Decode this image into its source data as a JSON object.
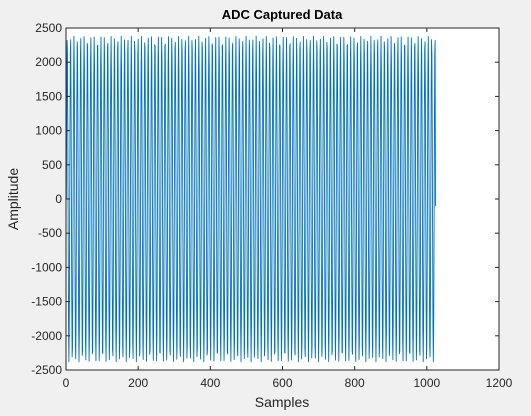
{
  "colors": {
    "figure_background": "#f0f0f0",
    "axes_background": "#ffffff",
    "axes_line": "#262626",
    "series": "#0072bd"
  },
  "chart_data": {
    "type": "line",
    "title": "ADC Captured Data",
    "xlabel": "Samples",
    "ylabel": "Amplitude",
    "xlim": [
      0,
      1200
    ],
    "ylim": [
      -2500,
      2500
    ],
    "xticks": [
      0,
      200,
      400,
      600,
      800,
      1000,
      1200
    ],
    "yticks": [
      -2500,
      -2000,
      -1500,
      -1000,
      -500,
      0,
      500,
      1000,
      1500,
      2000,
      2500
    ],
    "xtick_labels": [
      "0",
      "200",
      "400",
      "600",
      "800",
      "1000",
      "1200"
    ],
    "ytick_labels": [
      "-2500",
      "-2000",
      "-1500",
      "-1000",
      "-500",
      "0",
      "500",
      "1000",
      "1500",
      "2000",
      "2500"
    ],
    "grid": false,
    "box": true,
    "series": [
      {
        "sample_count": 1024,
        "x_start": 1,
        "x_end": 1024,
        "waveform": "sine",
        "amplitude": 2380,
        "cycles": 109.5,
        "phase_deg": 0,
        "first_value": 0,
        "last_value": -100
      }
    ]
  }
}
